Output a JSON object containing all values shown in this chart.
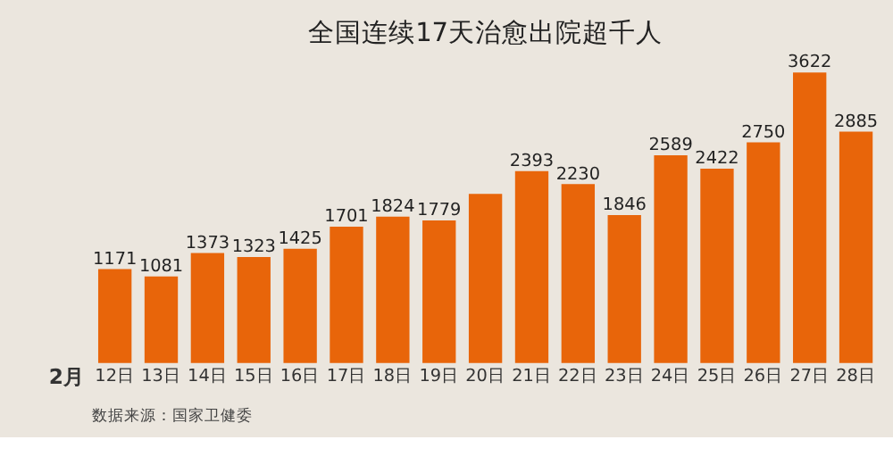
{
  "chart_data": {
    "type": "bar",
    "title": "全国连续17天治愈出院超千人",
    "categories": [
      "12日",
      "13日",
      "14日",
      "15日",
      "16日",
      "17日",
      "18日",
      "19日",
      "20日",
      "21日",
      "22日",
      "23日",
      "24日",
      "25日",
      "26日",
      "27日",
      "28日"
    ],
    "values": [
      1171,
      1081,
      1373,
      1323,
      1425,
      1701,
      1824,
      1779,
      2109,
      2393,
      2230,
      1846,
      2589,
      2422,
      2750,
      3622,
      2885
    ],
    "value_labels": [
      "1171",
      "1081",
      "1373",
      "1323",
      "1425",
      "1701",
      "1824",
      "1779",
      null,
      "2393",
      "2230",
      "1846",
      "2589",
      "2422",
      "2750",
      "3622",
      "2885"
    ],
    "color": "#e8650a",
    "annotations": [
      "2月",
      "数据来源：国家卫健委"
    ]
  }
}
